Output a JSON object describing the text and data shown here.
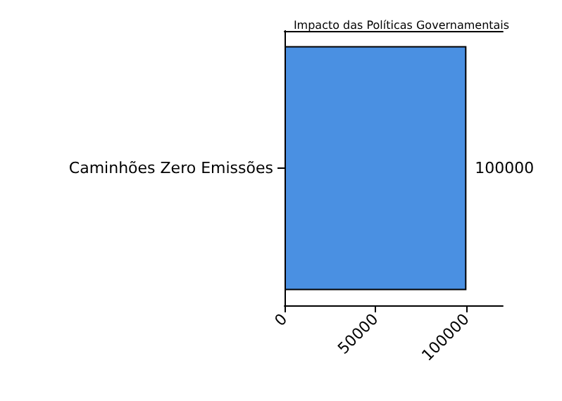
{
  "chart_data": {
    "type": "bar",
    "title": "Impacto das Políticas Governamentais",
    "orientation": "horizontal",
    "categories": [
      "Caminhões Zero Emissões"
    ],
    "values": [
      100000
    ],
    "color": "#4a90e2",
    "xlim": [
      0,
      120000
    ],
    "xticks": [
      0,
      50000,
      100000
    ],
    "data_labels": true
  }
}
